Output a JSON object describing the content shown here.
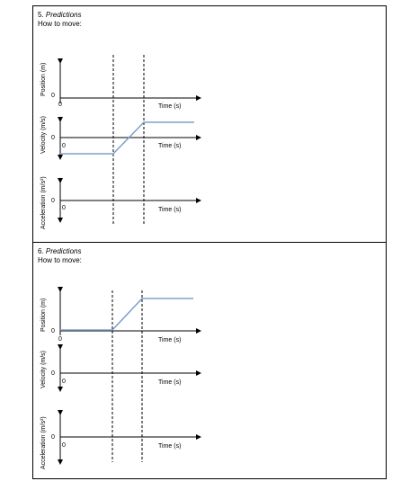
{
  "sections": [
    {
      "number": "5.",
      "title": "Predictions",
      "subtitle": "How to move:",
      "graphs": [
        {
          "ylabel": "Position (m)",
          "xlabel": "Time (s)",
          "zero": "0",
          "origin": "0"
        },
        {
          "ylabel": "Velocity (m/s)",
          "xlabel": "Time (s)",
          "zero": "0",
          "origin": "0"
        },
        {
          "ylabel": "Acceleration (m/s²)",
          "xlabel": "Time (s)",
          "zero": "0",
          "origin": "0"
        }
      ]
    },
    {
      "number": "6.",
      "title": "Predictions",
      "subtitle": "How to move:",
      "graphs": [
        {
          "ylabel": "Position (m)",
          "xlabel": "Time (s)",
          "zero": "0",
          "origin": "0"
        },
        {
          "ylabel": "Velocity (m/s)",
          "xlabel": "Time (s)",
          "zero": "0",
          "origin": "0"
        },
        {
          "ylabel": "Acceleration (m/s²)",
          "xlabel": "Time (s)",
          "zero": "0",
          "origin": "0"
        }
      ]
    }
  ],
  "colors": {
    "curve": "#7f9fcf",
    "axis": "#000000"
  }
}
